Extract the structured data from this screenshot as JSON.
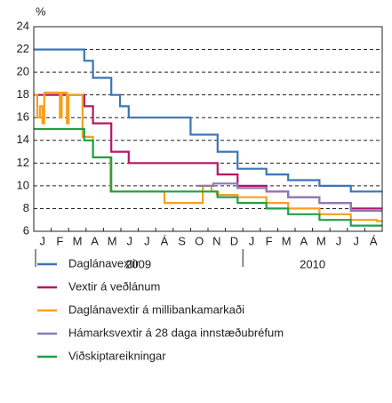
{
  "chart_data": {
    "type": "step-line",
    "y_label": "%",
    "categories": [
      "J",
      "F",
      "M",
      "A",
      "M",
      "J",
      "J",
      "Á",
      "S",
      "O",
      "N",
      "D",
      "J",
      "F",
      "M",
      "A",
      "M",
      "J",
      "J",
      "Á"
    ],
    "years": [
      "2009",
      "2010"
    ],
    "xlim": [
      0,
      20
    ],
    "ylim": [
      6,
      24
    ],
    "yticks": [
      6,
      8,
      10,
      12,
      14,
      16,
      18,
      20,
      22,
      24
    ],
    "grid": true,
    "series": [
      {
        "name": "Daglánavextir",
        "color": "#3a75b5",
        "x": [
          0,
          2.9,
          3.4,
          4.45,
          4.95,
          5.45,
          9.0,
          10.55,
          11.7,
          13.35,
          14.6,
          16.4,
          18.2
        ],
        "values": [
          22,
          21,
          19.5,
          18,
          17,
          16,
          14.5,
          13,
          11.5,
          11,
          10.5,
          10,
          9.5
        ]
      },
      {
        "name": "Vextir á veðlánum",
        "color": "#b5156a",
        "x": [
          0,
          2.9,
          3.4,
          4.45,
          5.45,
          10.55,
          11.7,
          13.35,
          14.6,
          16.4,
          18.2
        ],
        "values": [
          18,
          17,
          15.5,
          13,
          12,
          11,
          10,
          9.5,
          9,
          8.5,
          8
        ]
      },
      {
        "name": "Daglánavextir á millibankamarkaði",
        "color": "#f5a01e",
        "x": [
          0,
          0.2,
          0.35,
          0.5,
          0.6,
          1.5,
          1.6,
          1.9,
          2.0,
          2.8,
          3.4,
          4.4,
          7.5,
          9.7,
          10.2,
          10.5,
          11.7,
          13.35,
          14.6,
          16.4,
          18.2,
          19.7
        ],
        "values": [
          18,
          16,
          17,
          15.5,
          18.2,
          16,
          18.2,
          15.5,
          18,
          14.3,
          12.5,
          9.5,
          8.5,
          10,
          9.5,
          9.2,
          9,
          8.5,
          8,
          7.5,
          7,
          6.9
        ]
      },
      {
        "name": "Hámarksvextir á 28 daga innstæðubréfum",
        "color": "#8d79b8",
        "x": [
          9.4,
          10.3,
          11.7,
          13.35,
          14.6,
          16.4,
          18.2
        ],
        "values": [
          10,
          10.2,
          9.8,
          9.5,
          9,
          8.5,
          7.8
        ]
      },
      {
        "name": "Viðskiptareikningar",
        "color": "#1fa049",
        "x": [
          0,
          2.9,
          3.4,
          4.45,
          10.55,
          11.7,
          13.35,
          14.6,
          16.4,
          18.2
        ],
        "values": [
          15,
          14,
          12.5,
          9.5,
          9,
          8.5,
          8,
          7.5,
          7,
          6.5
        ]
      }
    ]
  }
}
